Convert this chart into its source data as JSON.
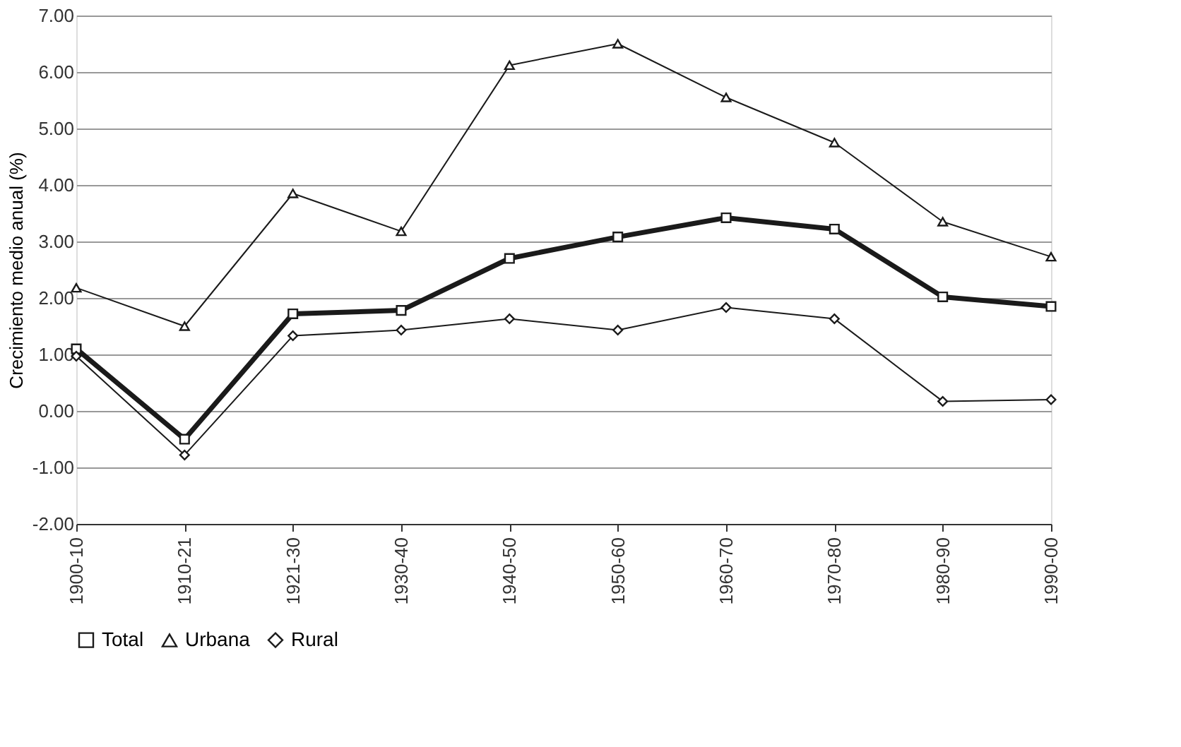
{
  "chart_data": {
    "type": "line",
    "ylabel": "Crecimiento medio anual (%)",
    "categories": [
      "1900-10",
      "1910-21",
      "1921-30",
      "1930-40",
      "1940-50",
      "1950-60",
      "1960-70",
      "1970-80",
      "1980-90",
      "1990-00"
    ],
    "series": [
      {
        "name": "Total",
        "color": "#1a1a1a",
        "marker": "square",
        "values": [
          1.1,
          -0.5,
          1.72,
          1.78,
          2.7,
          3.08,
          3.42,
          3.22,
          2.02,
          1.85
        ]
      },
      {
        "name": "Urbana",
        "color": "#1a1a1a",
        "marker": "triangle",
        "values": [
          2.18,
          1.5,
          3.85,
          3.18,
          6.12,
          6.5,
          5.55,
          4.75,
          3.35,
          2.73
        ]
      },
      {
        "name": "Rural",
        "color": "#1a1a1a",
        "marker": "diamond",
        "values": [
          0.97,
          -0.78,
          1.33,
          1.43,
          1.63,
          1.43,
          1.83,
          1.63,
          0.17,
          0.2
        ]
      }
    ],
    "ylim": [
      -2,
      7
    ],
    "yticks": [
      {
        "value": -2,
        "label": "-2.00"
      },
      {
        "value": -1,
        "label": "-1.00"
      },
      {
        "value": 0,
        "label": "0.00"
      },
      {
        "value": 1,
        "label": "1.00"
      },
      {
        "value": 2,
        "label": "2.00"
      },
      {
        "value": 3,
        "label": "3.00"
      },
      {
        "value": 4,
        "label": "4.00"
      },
      {
        "value": 5,
        "label": "5.00"
      },
      {
        "value": 6,
        "label": "6.00"
      },
      {
        "value": 7,
        "label": "7.00"
      }
    ],
    "grid": "y",
    "legend": "bottom",
    "line_style": "solid"
  }
}
